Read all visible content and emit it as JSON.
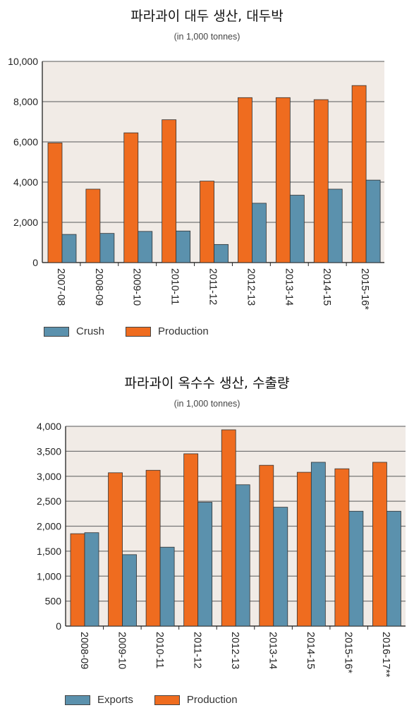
{
  "colors": {
    "orange": "#ef6c1f",
    "blue": "#5b91ad",
    "plot_bg": "#f1ebe6",
    "grid": "#777777"
  },
  "chart_data": [
    {
      "type": "bar",
      "title": "파라과이 대두 생산, 대두박",
      "subtitle": "(in 1,000 tonnes)",
      "categories": [
        "2007-08",
        "2008-09",
        "2009-10",
        "2010-11",
        "2011-12",
        "2012-13",
        "2013-14",
        "2014-15",
        "2015-16*"
      ],
      "series": [
        {
          "name": "Production",
          "color": "orange",
          "values": [
            5950,
            3650,
            6450,
            7100,
            4050,
            8200,
            8200,
            8100,
            8800
          ]
        },
        {
          "name": "Crush",
          "color": "blue",
          "values": [
            1400,
            1450,
            1550,
            1570,
            900,
            2950,
            3350,
            3650,
            4100
          ]
        }
      ],
      "legend_order": [
        "Crush",
        "Production"
      ],
      "ylim": [
        0,
        10000
      ],
      "yticks": [
        0,
        2000,
        4000,
        6000,
        8000,
        10000
      ],
      "ytick_labels": [
        "0",
        "2,000",
        "4,000",
        "6,000",
        "8,000",
        "10,000"
      ],
      "grid": true,
      "legend_position": "bottom-left"
    },
    {
      "type": "bar",
      "title": "파라과이 옥수수 생산, 수출량",
      "subtitle": "(in 1,000 tonnes)",
      "categories": [
        "2008-09",
        "2009-10",
        "2010-11",
        "2011-12",
        "2012-13",
        "2013-14",
        "2014-15",
        "2015-16*",
        "2016-17**"
      ],
      "series": [
        {
          "name": "Production",
          "color": "orange",
          "values": [
            1850,
            3070,
            3120,
            3450,
            3930,
            3220,
            3080,
            3150,
            3280
          ]
        },
        {
          "name": "Exports",
          "color": "blue",
          "values": [
            1870,
            1430,
            1580,
            2480,
            2830,
            2380,
            3280,
            2300,
            2300
          ]
        }
      ],
      "legend_order": [
        "Exports",
        "Production"
      ],
      "ylim": [
        0,
        4000
      ],
      "yticks": [
        0,
        500,
        1000,
        1500,
        2000,
        2500,
        3000,
        3500,
        4000
      ],
      "ytick_labels": [
        "0",
        "500",
        "1,000",
        "1,500",
        "2,000",
        "2,500",
        "3,000",
        "3,500",
        "4,000"
      ],
      "grid": true,
      "legend_position": "bottom-left"
    }
  ]
}
